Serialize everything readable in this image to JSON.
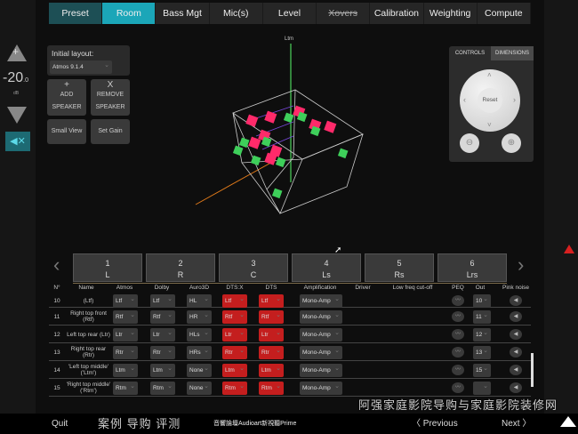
{
  "tabs": [
    "Preset",
    "Room",
    "Bass Mgt",
    "Mic(s)",
    "Level",
    "Xovers",
    "Calibration",
    "Weighting",
    "Compute"
  ],
  "volume": {
    "value": "-20",
    "decimal": ".0",
    "unit": "dB"
  },
  "left_panel": {
    "initial_layout_label": "Initial layout:",
    "layout_value": "Atmos 9.1.4",
    "add_symbol": "+",
    "add_line1": "ADD",
    "add_line2": "SPEAKER",
    "remove_symbol": "X",
    "remove_line1": "REMOVE",
    "remove_line2": "SPEAKER",
    "small_view": "Small View",
    "set_gain": "Set Gain"
  },
  "scene": {
    "axis_label": "Ltm"
  },
  "controls": {
    "tab_controls": "CONTROLS",
    "tab_dimensions": "DIMENSIONS",
    "reset": "Reset"
  },
  "speakers": [
    {
      "n": "1",
      "name": "L"
    },
    {
      "n": "2",
      "name": "R"
    },
    {
      "n": "3",
      "name": "C"
    },
    {
      "n": "4",
      "name": "Ls"
    },
    {
      "n": "5",
      "name": "Rs"
    },
    {
      "n": "6",
      "name": "Lrs"
    }
  ],
  "table": {
    "headers": [
      "N°",
      "Name",
      "Atmos",
      "Dolby",
      "Auro3D",
      "DTS:X",
      "DTS",
      "Amplification",
      "Driver",
      "Low freq cut-off",
      "PEQ",
      "Out",
      "Pink noise"
    ],
    "rows": [
      {
        "n": "10",
        "name": "(Ltf)",
        "atmos": "Ltf",
        "dolby": "Ltf",
        "auro": "HL",
        "dtsx": "Ltf",
        "dts": "Ltf",
        "amp": "Mono-Amp",
        "out": "10"
      },
      {
        "n": "11",
        "name": "Right top front (Rtf)",
        "atmos": "Rtf",
        "dolby": "Rtf",
        "auro": "HR",
        "dtsx": "Rtf",
        "dts": "Rtf",
        "amp": "Mono-Amp",
        "out": "11"
      },
      {
        "n": "12",
        "name": "Left top rear (Ltr)",
        "atmos": "Ltr",
        "dolby": "Ltr",
        "auro": "HLs",
        "dtsx": "Ltr",
        "dts": "Ltr",
        "amp": "Mono-Amp",
        "out": "12"
      },
      {
        "n": "13",
        "name": "Right top rear (Rtr)",
        "atmos": "Rtr",
        "dolby": "Rtr",
        "auro": "HRs",
        "dtsx": "Rtr",
        "dts": "Rtr",
        "amp": "Mono-Amp",
        "out": "13"
      },
      {
        "n": "14",
        "name": "'Left top middle' ('Ltm')",
        "atmos": "Ltm",
        "dolby": "Ltm",
        "auro": "None",
        "dtsx": "Ltm",
        "dts": "Ltm",
        "amp": "Mono-Amp",
        "out": "15"
      },
      {
        "n": "15",
        "name": "'Right top middle' ('Rtm')",
        "atmos": "Rtm",
        "dolby": "Rtm",
        "auro": "None",
        "dtsx": "Rtm",
        "dts": "Rtm",
        "amp": "Mono-Amp",
        "out": ""
      }
    ]
  },
  "footer": {
    "quit": "Quit",
    "previous": "Previous",
    "next": "Next"
  },
  "watermark": {
    "line1": "阿强家庭影院导购与家庭影院装修网",
    "line2": "案例 导购 评测",
    "line3": "音響論壇Audioart新視聽Prime"
  },
  "colors": {
    "accent": "#1ba6b8",
    "red": "#c41e1e",
    "speaker_pink": "#ff2a6a",
    "speaker_green": "#3ecf5a"
  }
}
